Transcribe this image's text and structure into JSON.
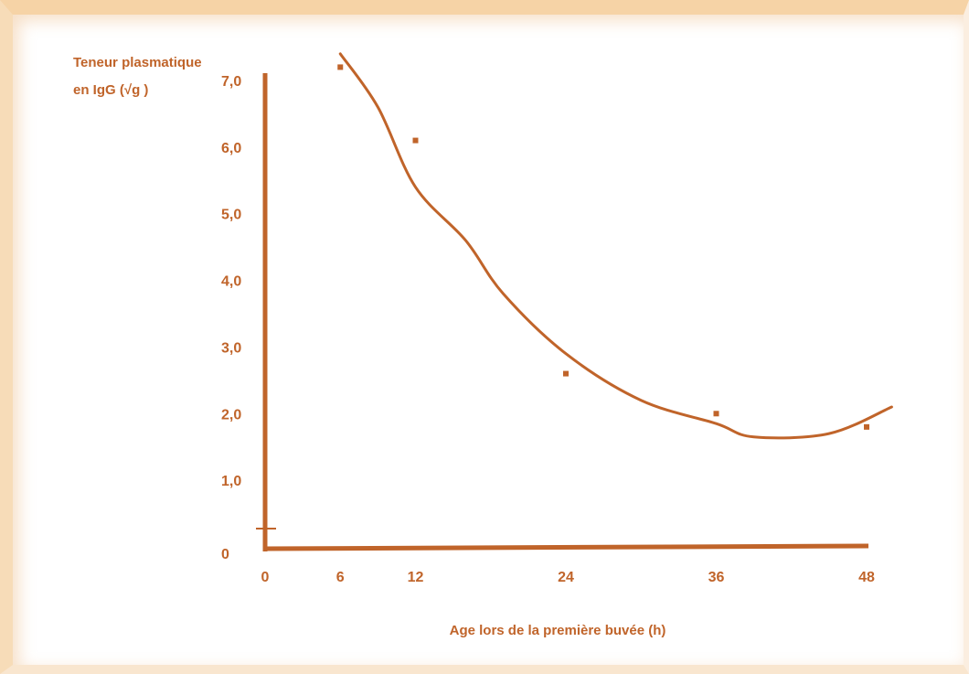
{
  "colors": {
    "accent": "#c0642a",
    "frame": "#f6d3a6"
  },
  "chart_data": {
    "type": "line",
    "title": "",
    "ylabel_line1": "Teneur plasmatique",
    "ylabel_line2": "en IgG (√g )",
    "xlabel": "Age lors de la première buvée (h)",
    "xlim": [
      0,
      48
    ],
    "ylim": [
      0,
      7.0
    ],
    "x_ticks": [
      "0",
      "6",
      "12",
      "24",
      "36",
      "48"
    ],
    "y_ticks": [
      "0",
      "1,0",
      "2,0",
      "3,0",
      "4,0",
      "5,0",
      "6,0",
      "7,0"
    ],
    "grid": false,
    "legend": "none",
    "points": [
      {
        "x": 6,
        "y": 7.2
      },
      {
        "x": 12,
        "y": 6.1
      },
      {
        "x": 24,
        "y": 2.6
      },
      {
        "x": 36,
        "y": 2.0
      },
      {
        "x": 48,
        "y": 1.8
      }
    ],
    "curve": [
      {
        "x": 6,
        "y": 7.4
      },
      {
        "x": 9,
        "y": 6.6
      },
      {
        "x": 12,
        "y": 5.4
      },
      {
        "x": 16,
        "y": 4.6
      },
      {
        "x": 19,
        "y": 3.8
      },
      {
        "x": 24,
        "y": 2.9
      },
      {
        "x": 30,
        "y": 2.2
      },
      {
        "x": 36,
        "y": 1.85
      },
      {
        "x": 39,
        "y": 1.65
      },
      {
        "x": 45,
        "y": 1.7
      },
      {
        "x": 50,
        "y": 2.1
      }
    ]
  }
}
